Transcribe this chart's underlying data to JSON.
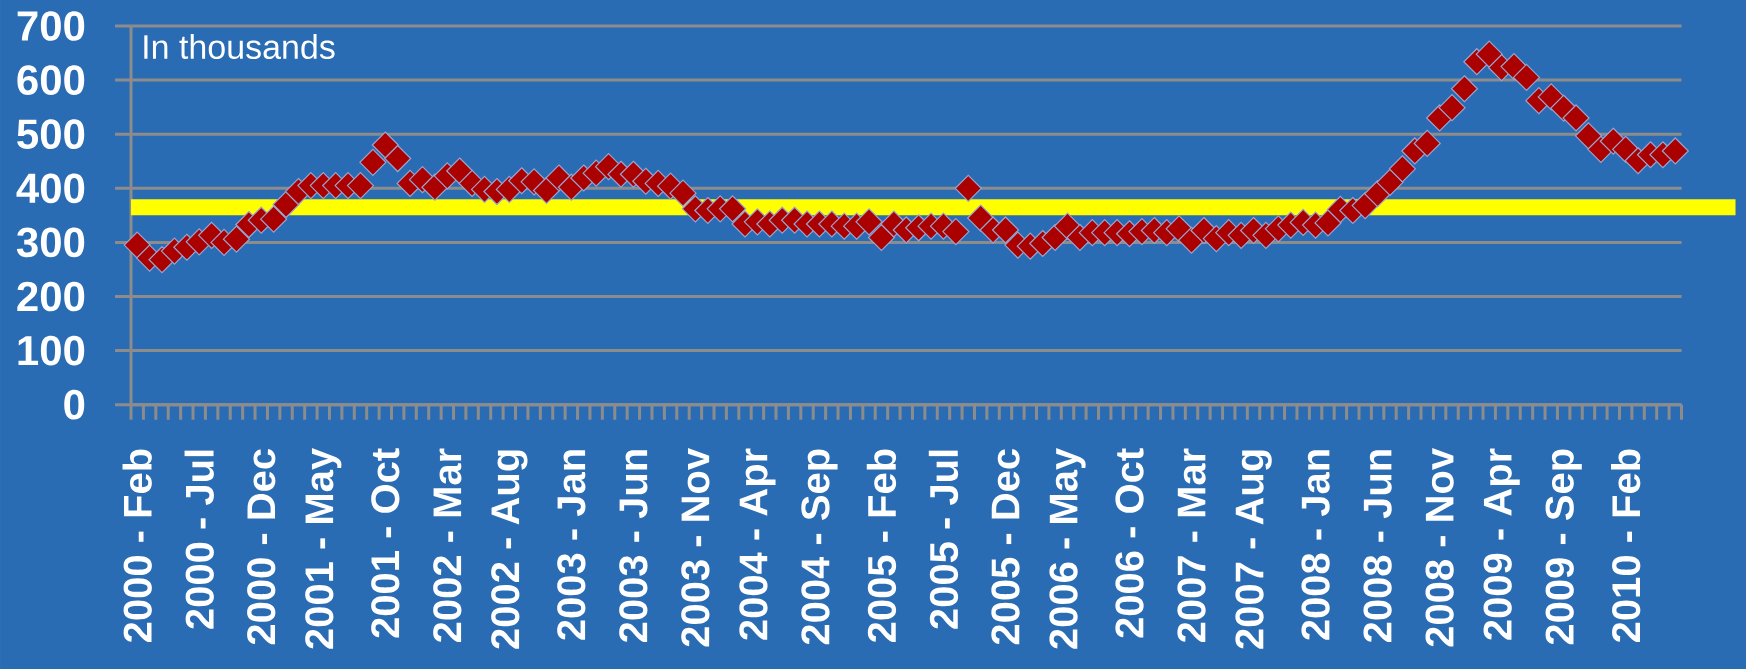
{
  "chart_data": {
    "type": "scatter",
    "categories": [
      "2000 - Feb",
      null,
      null,
      null,
      null,
      "2000 - Jul",
      null,
      null,
      null,
      null,
      "2000 - Dec",
      null,
      null,
      null,
      null,
      "2001 - May",
      null,
      null,
      null,
      null,
      "2001 - Oct",
      null,
      null,
      null,
      null,
      "2002 - Mar",
      null,
      null,
      null,
      null,
      "2002 - Aug",
      null,
      null,
      null,
      null,
      "2003 - Jan",
      null,
      null,
      null,
      null,
      "2003 - Jun",
      null,
      null,
      null,
      null,
      "2003 - Nov",
      null,
      null,
      null,
      null,
      "2004 - Apr",
      null,
      null,
      null,
      null,
      "2004 - Sep",
      null,
      null,
      null,
      null,
      "2005 - Feb",
      null,
      null,
      null,
      null,
      "2005 - Jul",
      null,
      null,
      null,
      null,
      "2005 - Dec",
      null,
      null,
      null,
      null,
      "2006 - May",
      null,
      null,
      null,
      null,
      "2006 - Oct",
      null,
      null,
      null,
      null,
      "2007 - Mar",
      null,
      null,
      null,
      null,
      "2007 - Aug",
      null,
      null,
      null,
      null,
      "2008 - Jan",
      null,
      null,
      null,
      null,
      "2008 - Jun",
      null,
      null,
      null,
      null,
      "2008 - Nov",
      null,
      null,
      null,
      null,
      "2009 - Apr",
      null,
      null,
      null,
      null,
      "2009 - Sep",
      null,
      null,
      null,
      null,
      "2010 - Feb",
      null,
      null,
      null,
      null
    ],
    "values": [
      295,
      271,
      268,
      284,
      291,
      301,
      313,
      300,
      306,
      333,
      341,
      343,
      370,
      394,
      405,
      405,
      405,
      405,
      405,
      448,
      480,
      455,
      409,
      416,
      402,
      423,
      432,
      409,
      398,
      394,
      398,
      414,
      412,
      396,
      419,
      402,
      419,
      428,
      440,
      426,
      426,
      413,
      409,
      404,
      391,
      362,
      359,
      362,
      362,
      334,
      338,
      334,
      341,
      341,
      334,
      334,
      334,
      330,
      330,
      338,
      309,
      334,
      323,
      327,
      330,
      330,
      320,
      400,
      345,
      323,
      323,
      295,
      293,
      298,
      309,
      330,
      309,
      318,
      318,
      318,
      316,
      320,
      322,
      318,
      325,
      304,
      322,
      307,
      318,
      313,
      322,
      313,
      325,
      332,
      337,
      332,
      336,
      361,
      359,
      368,
      390,
      411,
      436,
      469,
      483,
      530,
      549,
      584,
      634,
      648,
      623,
      625,
      605,
      562,
      569,
      548,
      530,
      497,
      472,
      487,
      472,
      451,
      462,
      462,
      469
    ],
    "color": "#aa0000",
    "marker": "diamond",
    "ylim": [
      0,
      700
    ],
    "yticks": [
      0,
      100,
      200,
      300,
      400,
      500,
      600,
      700
    ],
    "grid": "y",
    "ref_lines": [
      {
        "axis": "y",
        "value": 365,
        "color": "#ffff00"
      }
    ],
    "annotations": [
      "In thousands"
    ]
  }
}
